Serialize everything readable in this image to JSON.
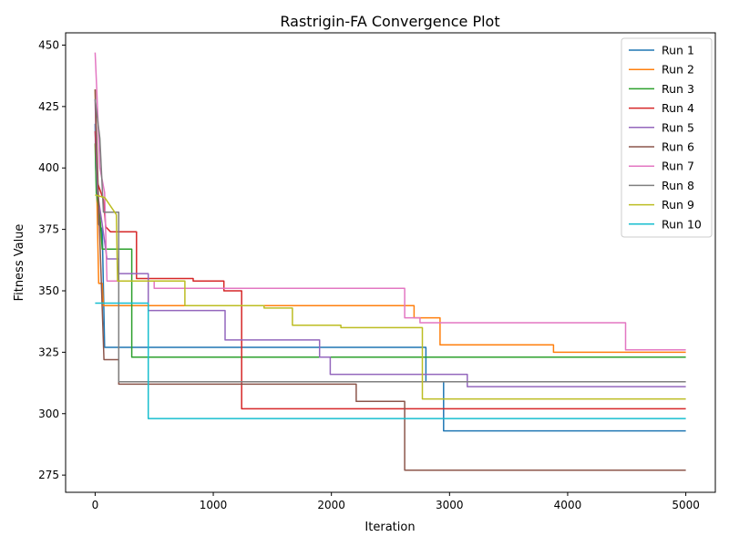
{
  "chart_data": {
    "type": "line",
    "title": "Rastrigin-FA Convergence Plot",
    "xlabel": "Iteration",
    "ylabel": "Fitness Value",
    "xlim": [
      -250,
      5250
    ],
    "ylim": [
      268,
      455
    ],
    "xticks": [
      0,
      1000,
      2000,
      3000,
      4000,
      5000
    ],
    "yticks": [
      275,
      300,
      325,
      350,
      375,
      400,
      425,
      450
    ],
    "grid": false,
    "legend": "top-right",
    "step": true,
    "series": [
      {
        "name": "Run 1",
        "color": "#1f77b4",
        "points": [
          [
            0,
            418
          ],
          [
            5,
            400
          ],
          [
            15,
            388
          ],
          [
            30,
            377
          ],
          [
            60,
            375
          ],
          [
            80,
            327
          ],
          [
            2800,
            327
          ],
          [
            2800,
            313
          ],
          [
            2950,
            313
          ],
          [
            2950,
            293
          ],
          [
            5000,
            293
          ]
        ]
      },
      {
        "name": "Run 2",
        "color": "#ff7f0e",
        "points": [
          [
            0,
            432
          ],
          [
            10,
            400
          ],
          [
            30,
            353
          ],
          [
            60,
            353
          ],
          [
            70,
            344
          ],
          [
            2700,
            344
          ],
          [
            2700,
            339
          ],
          [
            2920,
            339
          ],
          [
            2920,
            328
          ],
          [
            3880,
            328
          ],
          [
            3880,
            325
          ],
          [
            5000,
            325
          ]
        ]
      },
      {
        "name": "Run 3",
        "color": "#2ca02c",
        "points": [
          [
            0,
            410
          ],
          [
            10,
            390
          ],
          [
            40,
            381
          ],
          [
            60,
            367
          ],
          [
            310,
            367
          ],
          [
            310,
            323
          ],
          [
            5000,
            323
          ]
        ]
      },
      {
        "name": "Run 4",
        "color": "#d62728",
        "points": [
          [
            0,
            415
          ],
          [
            20,
            394
          ],
          [
            70,
            387
          ],
          [
            90,
            376
          ],
          [
            130,
            374
          ],
          [
            350,
            374
          ],
          [
            350,
            355
          ],
          [
            830,
            355
          ],
          [
            830,
            354
          ],
          [
            1090,
            354
          ],
          [
            1090,
            350
          ],
          [
            1240,
            350
          ],
          [
            1240,
            302
          ],
          [
            5000,
            302
          ]
        ]
      },
      {
        "name": "Run 5",
        "color": "#9467bd",
        "points": [
          [
            0,
            428
          ],
          [
            20,
            390
          ],
          [
            60,
            377
          ],
          [
            100,
            363
          ],
          [
            200,
            363
          ],
          [
            200,
            357
          ],
          [
            450,
            357
          ],
          [
            450,
            342
          ],
          [
            1100,
            342
          ],
          [
            1100,
            330
          ],
          [
            1900,
            330
          ],
          [
            1900,
            323
          ],
          [
            1990,
            323
          ],
          [
            1990,
            316
          ],
          [
            3150,
            316
          ],
          [
            3150,
            311
          ],
          [
            5000,
            311
          ]
        ]
      },
      {
        "name": "Run 6",
        "color": "#8c564b",
        "points": [
          [
            0,
            432
          ],
          [
            30,
            385
          ],
          [
            75,
            322
          ],
          [
            200,
            322
          ],
          [
            200,
            312
          ],
          [
            1880,
            312
          ],
          [
            1880,
            312
          ],
          [
            2210,
            312
          ],
          [
            2210,
            305
          ],
          [
            2620,
            305
          ],
          [
            2620,
            277
          ],
          [
            5000,
            277
          ]
        ]
      },
      {
        "name": "Run 7",
        "color": "#e377c2",
        "points": [
          [
            0,
            447
          ],
          [
            15,
            430
          ],
          [
            40,
            400
          ],
          [
            80,
            390
          ],
          [
            100,
            354
          ],
          [
            500,
            354
          ],
          [
            500,
            351
          ],
          [
            2620,
            351
          ],
          [
            2620,
            339
          ],
          [
            2750,
            339
          ],
          [
            2750,
            337
          ],
          [
            4490,
            337
          ],
          [
            4490,
            326
          ],
          [
            5000,
            326
          ]
        ]
      },
      {
        "name": "Run 8",
        "color": "#7f7f7f",
        "points": [
          [
            0,
            428
          ],
          [
            40,
            412
          ],
          [
            70,
            382
          ],
          [
            200,
            382
          ],
          [
            200,
            313
          ],
          [
            5000,
            313
          ]
        ]
      },
      {
        "name": "Run 9",
        "color": "#bcbd22",
        "points": [
          [
            0,
            389
          ],
          [
            80,
            388
          ],
          [
            180,
            381
          ],
          [
            190,
            354
          ],
          [
            760,
            354
          ],
          [
            760,
            344
          ],
          [
            1430,
            344
          ],
          [
            1430,
            343
          ],
          [
            1670,
            343
          ],
          [
            1670,
            336
          ],
          [
            2080,
            336
          ],
          [
            2080,
            335
          ],
          [
            2770,
            335
          ],
          [
            2770,
            306
          ],
          [
            5000,
            306
          ]
        ]
      },
      {
        "name": "Run 10",
        "color": "#17becf",
        "points": [
          [
            0,
            345
          ],
          [
            450,
            345
          ],
          [
            450,
            298
          ],
          [
            5000,
            298
          ]
        ]
      }
    ]
  }
}
